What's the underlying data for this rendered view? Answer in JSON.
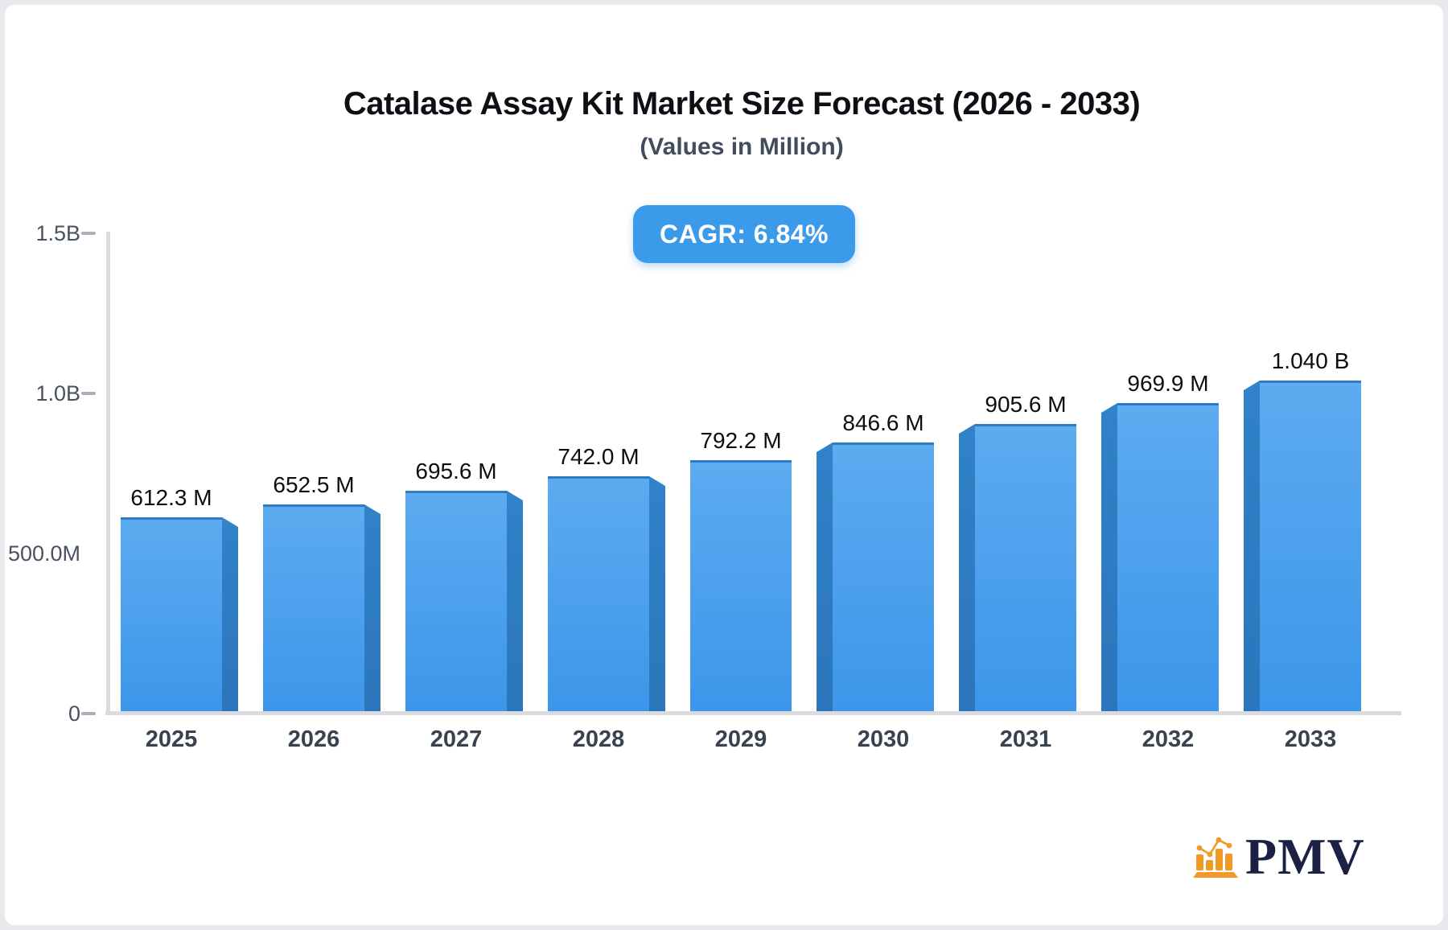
{
  "page": {
    "background": "#e7e9ec",
    "card_background": "#ffffff"
  },
  "header": {
    "title": "Catalase Assay Kit Market Size Forecast (2026 - 2033)",
    "subtitle": "(Values in Million)",
    "cagr_badge": "CAGR: 6.84%"
  },
  "y_axis": {
    "labels": [
      {
        "text": "1.5B",
        "value": 1500,
        "tick": true
      },
      {
        "text": "1.0B",
        "value": 1000,
        "tick": true
      },
      {
        "text": "500.0M",
        "value": 500,
        "tick": false
      },
      {
        "text": "0",
        "value": 0,
        "tick": true
      }
    ]
  },
  "logo": {
    "text": "PMV",
    "icon": "bar-chart-trend-icon",
    "text_color": "#1b2145",
    "icon_color": "#f09a28"
  },
  "colors": {
    "bar_face_top": "#5dabf0",
    "bar_face_bottom": "#3c96ea",
    "bar_top_edge": "#2f7cc2",
    "bar_side_top": "#3182c9",
    "bar_side_bottom": "#2b76bb",
    "badge_background": "#3b9aea",
    "axis_line": "#d9dbe0",
    "tick": "#aaafb8"
  },
  "chart_data": {
    "type": "bar",
    "title": "Catalase Assay Kit Market Size Forecast (2026 - 2033)",
    "subtitle": "(Values in Million)",
    "categories": [
      "2025",
      "2026",
      "2027",
      "2028",
      "2029",
      "2030",
      "2031",
      "2032",
      "2033"
    ],
    "values": [
      612.3,
      652.5,
      695.6,
      742.0,
      792.2,
      846.6,
      905.6,
      969.9,
      1040.0
    ],
    "value_labels": [
      "612.3 M",
      "652.5 M",
      "695.6 M",
      "742.0 M",
      "792.2 M",
      "846.6 M",
      "905.6 M",
      "969.9 M",
      "1.040 B"
    ],
    "unit": "million",
    "xlabel": "",
    "ylabel": "",
    "ylim": [
      0,
      1500
    ],
    "y_ticks": [
      "0",
      "500.0M",
      "1.0B",
      "1.5B"
    ],
    "grid": false,
    "legend": false,
    "cagr": "6.84%"
  }
}
